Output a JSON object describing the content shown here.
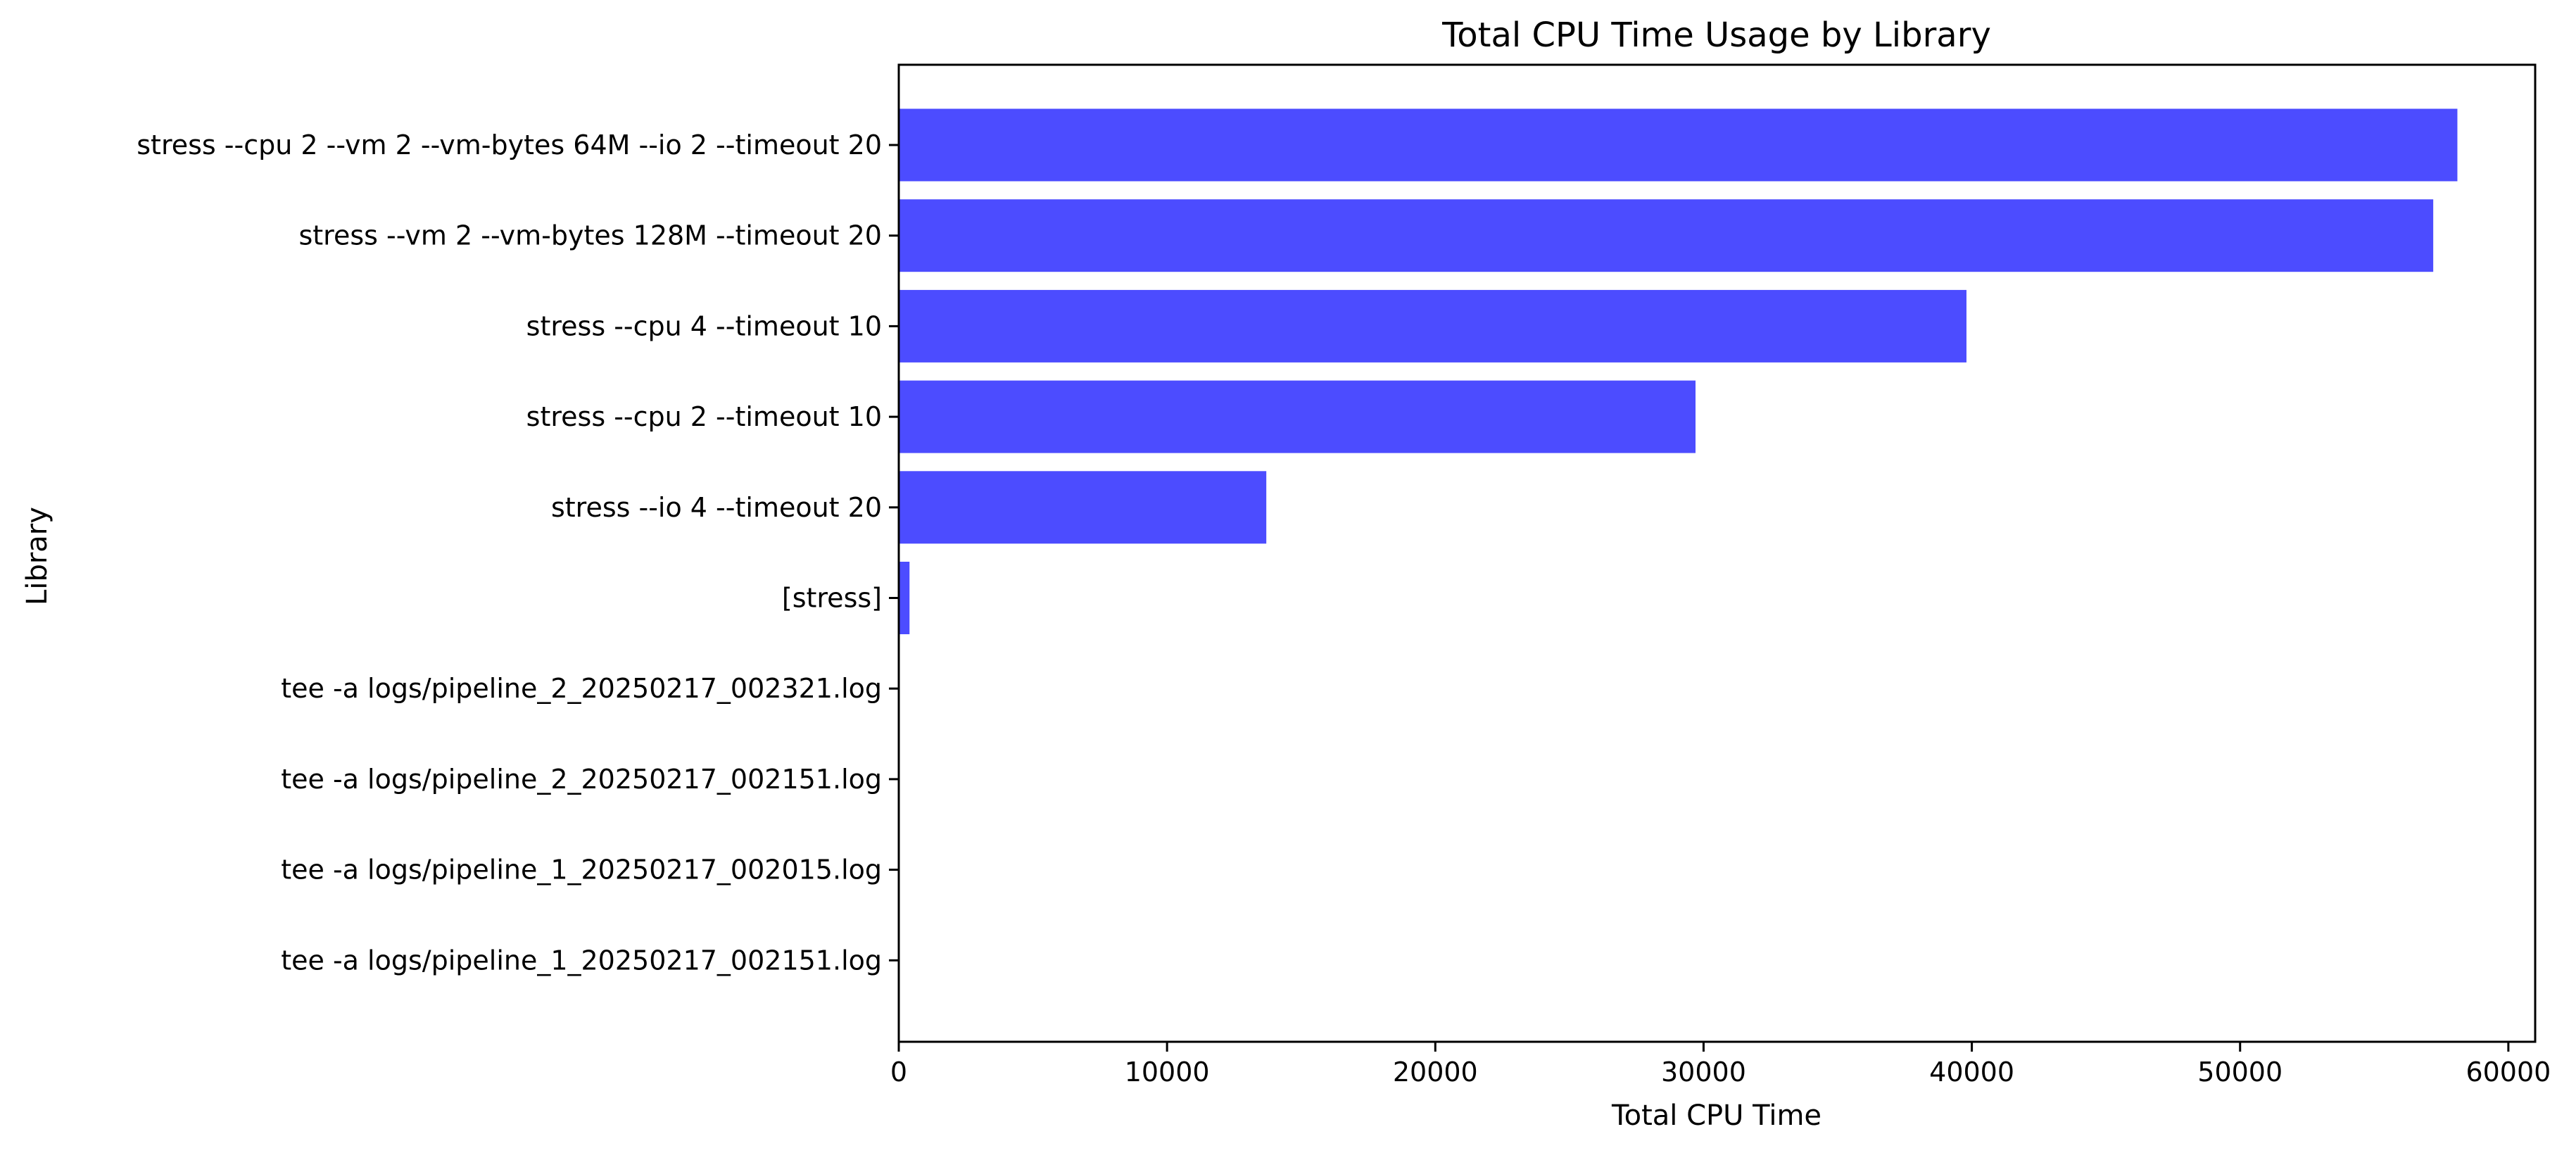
{
  "chart_data": {
    "type": "bar",
    "orientation": "horizontal",
    "title": "Total CPU Time Usage by Library",
    "xlabel": "Total CPU Time",
    "ylabel": "Library",
    "categories": [
      "stress --cpu 2 --vm 2 --vm-bytes 64M --io 2 --timeout 20",
      "stress --vm 2 --vm-bytes 128M --timeout 20",
      "stress --cpu 4 --timeout 10",
      "stress --cpu 2 --timeout 10",
      "stress --io 4 --timeout 20",
      "[stress]",
      "tee -a logs/pipeline_2_20250217_002321.log",
      "tee -a logs/pipeline_2_20250217_002151.log",
      "tee -a logs/pipeline_1_20250217_002015.log",
      "tee -a logs/pipeline_1_20250217_002151.log"
    ],
    "values": [
      58100,
      57200,
      39800,
      29700,
      13700,
      400,
      0,
      0,
      0,
      0
    ],
    "xlim": [
      0,
      61000
    ],
    "xticks": [
      0,
      10000,
      20000,
      30000,
      40000,
      50000,
      60000
    ],
    "xtick_labels": [
      "0",
      "10000",
      "20000",
      "30000",
      "40000",
      "50000",
      "60000"
    ],
    "bar_color": "#4c4cff",
    "grid": false,
    "legend": "none"
  }
}
